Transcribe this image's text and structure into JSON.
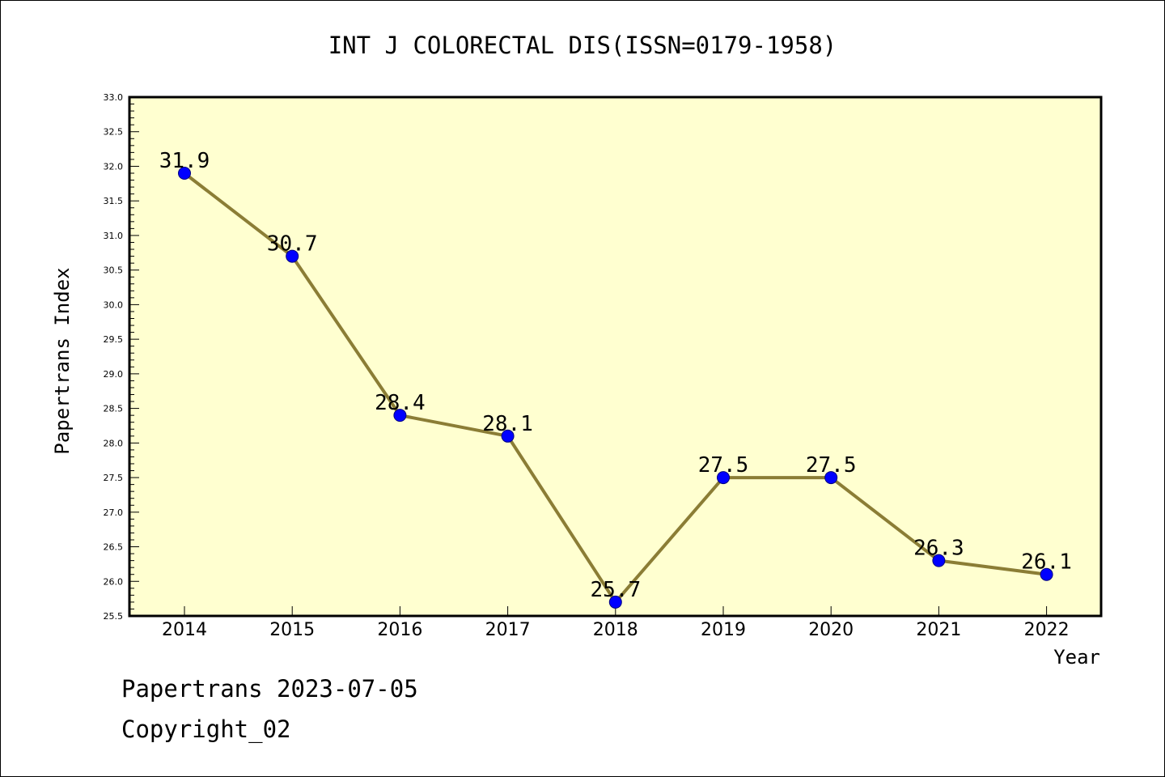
{
  "chart_data": {
    "type": "line",
    "title": "INT J COLORECTAL DIS(ISSN=0179-1958)",
    "xlabel": "Year",
    "ylabel": "Papertrans Index",
    "categories": [
      "2014",
      "2015",
      "2016",
      "2017",
      "2018",
      "2019",
      "2020",
      "2021",
      "2022"
    ],
    "series": [
      {
        "values": [
          31.9,
          30.7,
          28.4,
          28.1,
          25.7,
          27.5,
          27.5,
          26.3,
          26.1
        ],
        "data_labels": [
          "31.9",
          "30.7",
          "28.4",
          "28.1",
          "25.7",
          "27.5",
          "27.5",
          "26.3",
          "26.1"
        ]
      }
    ],
    "ylim": [
      25.5,
      33.0
    ],
    "yticks": [
      "25.5",
      "26.0",
      "26.5",
      "27.0",
      "27.5",
      "28.0",
      "28.5",
      "29.0",
      "29.5",
      "30.0",
      "30.5",
      "31.0",
      "31.5",
      "32.0",
      "32.5",
      "33.0"
    ],
    "grid": false,
    "colors": {
      "plot_background": "#ffffd0",
      "line": "#8b7d35",
      "marker": "#0000ff",
      "axis": "#000000"
    }
  },
  "footer": {
    "line1": "Papertrans 2023-07-05",
    "line2": "Copyright_02"
  }
}
